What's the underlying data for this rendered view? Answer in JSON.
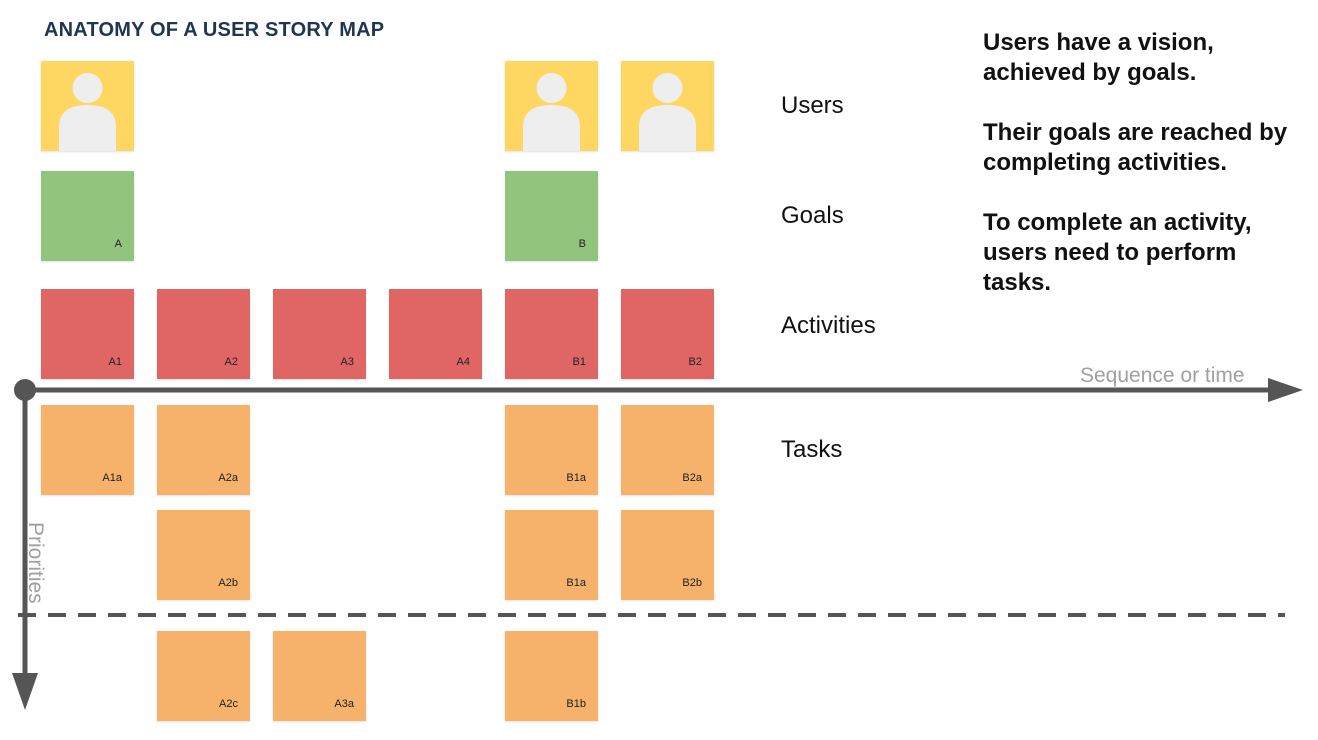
{
  "title": "ANATOMY OF A USER STORY MAP",
  "row_labels": {
    "users": "Users",
    "goals": "Goals",
    "activities": "Activities",
    "tasks": "Tasks"
  },
  "explanation": [
    "Users have a vision, achieved by goals.",
    "Their goals are reached by completing activities.",
    "To complete an activity, users need to perform tasks."
  ],
  "axes": {
    "horizontal": "Sequence or time",
    "vertical": "Priorities"
  },
  "colors": {
    "user": "#fdd762",
    "goal": "#93c47d",
    "activity": "#e06666",
    "task": "#f6b26b",
    "axis": "#555555",
    "title": "#1f3653"
  },
  "cards": {
    "goals": [
      "A",
      "B"
    ],
    "activities": [
      "A1",
      "A2",
      "A3",
      "A4",
      "B1",
      "B2"
    ],
    "tasks": [
      "A1a",
      "A2a",
      "B1a",
      "B2a",
      "A2b",
      "B1a",
      "B2b",
      "A2c",
      "A3a",
      "B1b"
    ]
  }
}
